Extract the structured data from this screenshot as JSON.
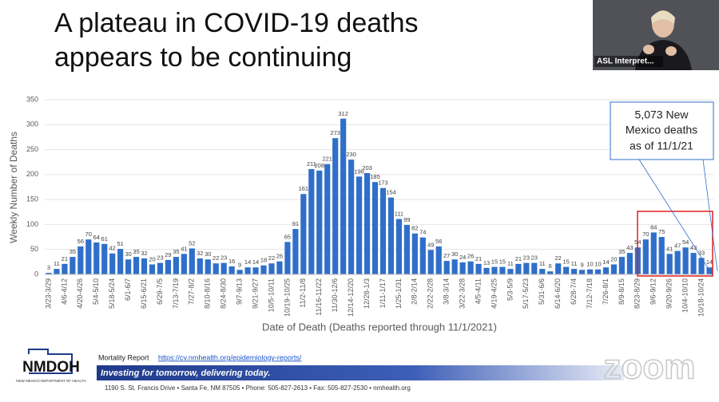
{
  "title_lines": [
    "A plateau in COVID-19 deaths",
    "appears to be continuing"
  ],
  "asl_label": "ASL Interpret...",
  "chart_data": {
    "type": "bar",
    "y_label": "Weekly Number of Deaths",
    "x_label": "Date of Death (Deaths reported through 11/1/2021)",
    "color": "#2f6fc9",
    "ylim": [
      0,
      350
    ],
    "yticks": [
      0,
      50,
      100,
      150,
      200,
      250,
      300,
      350
    ],
    "grid": true,
    "categories": [
      "3/23-3/29",
      null,
      "4/6-4/12",
      null,
      "4/20-4/26",
      null,
      "5/4-5/10",
      null,
      "5/18-5/24",
      null,
      "6/1-6/7",
      null,
      "6/15-6/21",
      null,
      "6/29-7/5",
      null,
      "7/13-7/19",
      null,
      "7/27-8/2",
      null,
      "8/10-8/16",
      null,
      "8/24-8/30",
      null,
      "9/7-9/13",
      null,
      "9/21-9/27",
      null,
      "10/5-10/11",
      null,
      "10/19-10/25",
      null,
      "11/2-11/8",
      null,
      "11/16-11/22",
      null,
      "11/30-12/6",
      null,
      "12/14-12/20",
      null,
      "12/28-1/3",
      null,
      "1/11-1/17",
      null,
      "1/25-1/31",
      null,
      "2/8-2/14",
      null,
      "2/22-2/28",
      null,
      "3/8-3/14",
      null,
      "3/22-3/28",
      null,
      "4/5-4/11",
      null,
      "4/19-4/25",
      null,
      "5/3-5/9",
      null,
      "5/17-5/23",
      null,
      "5/31-6/6",
      null,
      "6/14-6/20",
      null,
      "6/28-7/4",
      null,
      "7/12-7/18",
      null,
      "7/26-8/1",
      null,
      "8/9-8/15",
      null,
      "8/23-8/29",
      null,
      "9/6-9/12",
      null,
      "9/20-9/26",
      null,
      "10/4-10/10",
      null,
      "10/18-10/24",
      null
    ],
    "values": [
      3,
      11,
      21,
      35,
      56,
      70,
      64,
      61,
      42,
      51,
      30,
      35,
      32,
      20,
      23,
      29,
      35,
      41,
      52,
      32,
      30,
      22,
      23,
      16,
      9,
      14,
      14,
      18,
      22,
      26,
      65,
      91,
      161,
      211,
      208,
      221,
      273,
      312,
      230,
      196,
      203,
      185,
      173,
      154,
      111,
      99,
      82,
      74,
      49,
      56,
      27,
      30,
      24,
      26,
      21,
      13,
      15,
      15,
      11,
      21,
      23,
      23,
      11,
      6,
      22,
      15,
      11,
      9,
      10,
      10,
      14,
      20,
      35,
      43,
      54,
      70,
      84,
      75,
      41,
      47,
      54,
      43,
      33,
      14
    ],
    "annotation_lines": [
      "5,073 New",
      "Mexico deaths",
      "as of 11/1/21"
    ]
  },
  "footer": {
    "logo": "NMDOH",
    "logo_sub": "NEW MEXICO DEPARTMENT OF HEALTH",
    "report_label": "Mortality Report",
    "report_link": "https://cv.nmhealth.org/epidemiology-reports/",
    "slogan": "Investing for tomorrow, delivering today.",
    "address": "1190 S. St. Francis Drive • Santa Fe, NM 87505 • Phone: 505-827-2613 • Fax: 505-827-2530 • nmhealth.org"
  },
  "zoom_label": "zoom"
}
